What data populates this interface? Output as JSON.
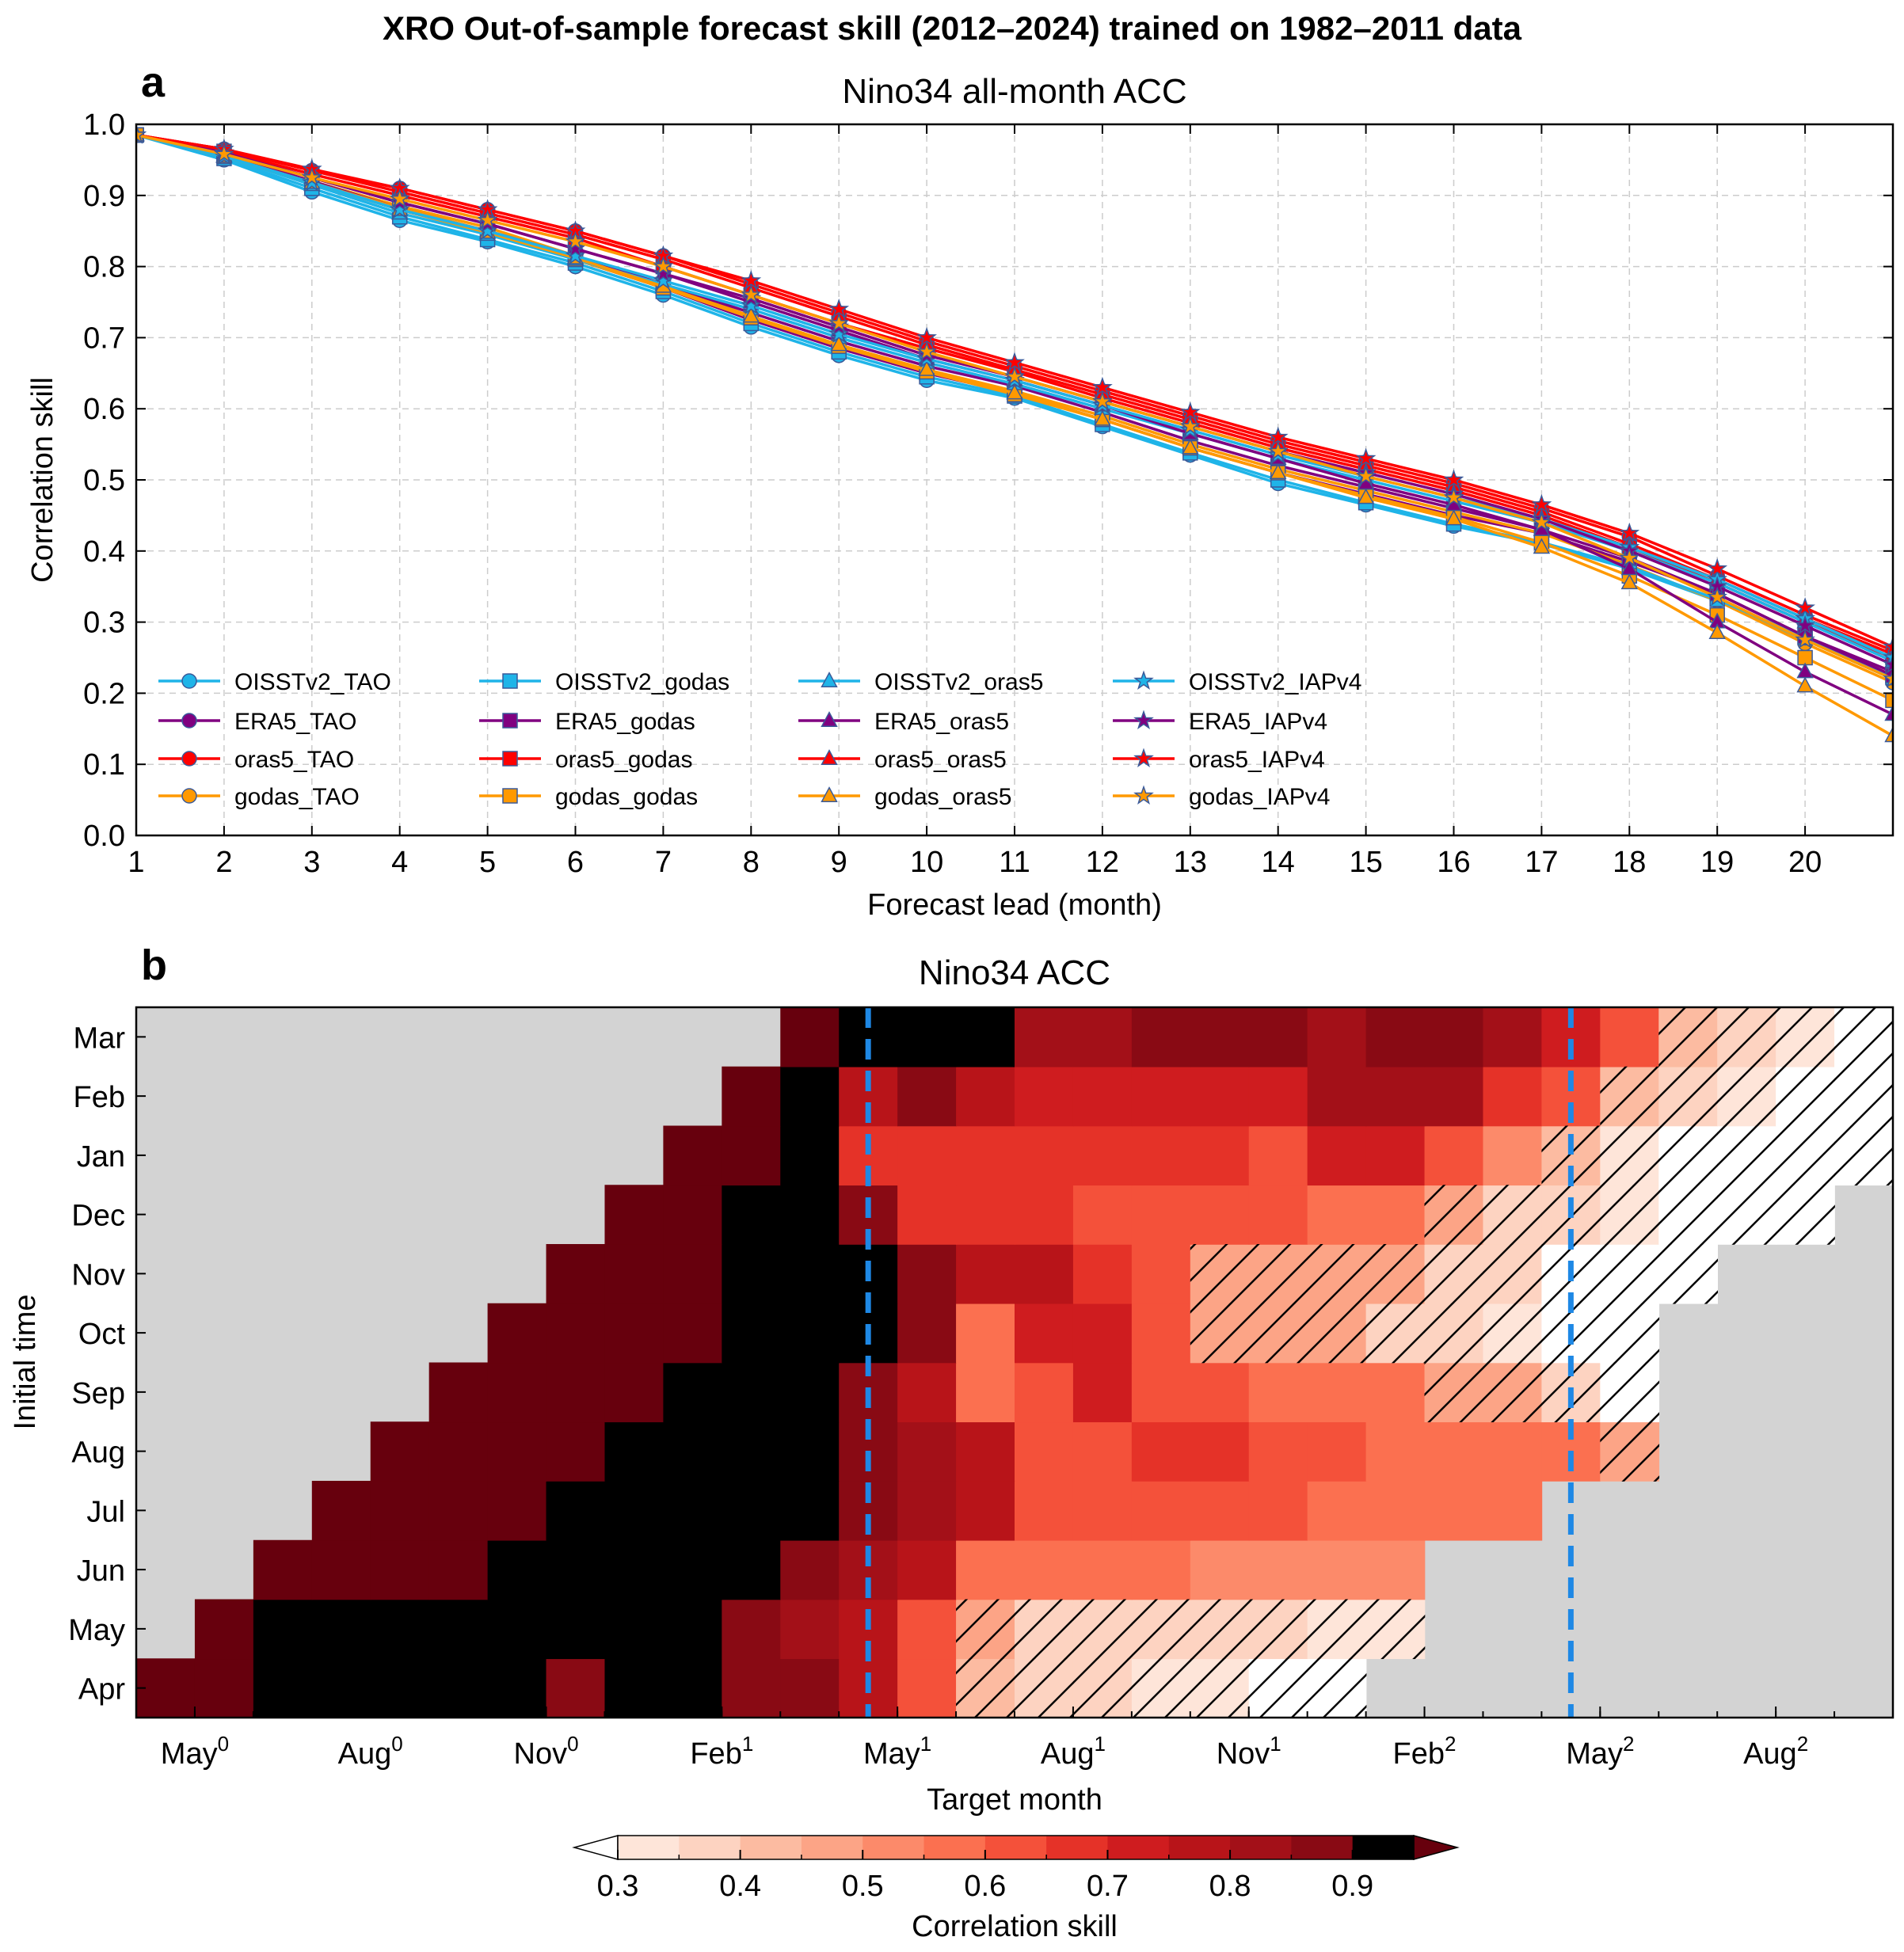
{
  "figure": {
    "suptitle": "XRO Out-of-sample forecast skill (2012–2024) trained on 1982–2011 data"
  },
  "chart_data": [
    {
      "panel": "a",
      "type": "line",
      "title": "Nino34 all-month ACC",
      "xlabel": "Forecast lead (month)",
      "ylabel": "Correlation skill",
      "xlim": [
        1,
        21
      ],
      "ylim": [
        0,
        1
      ],
      "xticks": [
        1,
        2,
        3,
        4,
        5,
        6,
        7,
        8,
        9,
        10,
        11,
        12,
        13,
        14,
        15,
        16,
        17,
        18,
        19,
        20
      ],
      "yticks": [
        "0.0",
        "0.1",
        "0.2",
        "0.3",
        "0.4",
        "0.5",
        "0.6",
        "0.7",
        "0.8",
        "0.9",
        "1.0"
      ],
      "grid": true,
      "legend_loc": "lower-left",
      "x": [
        1,
        2,
        3,
        4,
        5,
        6,
        7,
        8,
        9,
        10,
        11,
        12,
        13,
        14,
        15,
        16,
        17,
        18,
        19,
        20,
        21
      ],
      "series": [
        {
          "name": "OISSTv2_TAO",
          "color": "#1fb4e8",
          "marker": "circle",
          "values": [
            0.985,
            0.95,
            0.905,
            0.865,
            0.835,
            0.8,
            0.76,
            0.715,
            0.675,
            0.64,
            0.615,
            0.575,
            0.535,
            0.495,
            0.465,
            0.435,
            0.41,
            0.375,
            0.33,
            0.275,
            0.22
          ]
        },
        {
          "name": "ERA5_TAO",
          "color": "#800080",
          "marker": "circle",
          "values": [
            0.985,
            0.958,
            0.918,
            0.88,
            0.848,
            0.81,
            0.77,
            0.725,
            0.685,
            0.65,
            0.622,
            0.585,
            0.545,
            0.51,
            0.48,
            0.45,
            0.425,
            0.385,
            0.34,
            0.28,
            0.23
          ]
        },
        {
          "name": "oras5_TAO",
          "color": "#ff0000",
          "marker": "circle",
          "values": [
            0.985,
            0.965,
            0.935,
            0.91,
            0.88,
            0.85,
            0.815,
            0.775,
            0.735,
            0.695,
            0.66,
            0.625,
            0.59,
            0.555,
            0.525,
            0.495,
            0.46,
            0.42,
            0.365,
            0.31,
            0.26
          ]
        },
        {
          "name": "godas_TAO",
          "color": "#ff9900",
          "marker": "circle",
          "values": [
            0.985,
            0.955,
            0.92,
            0.885,
            0.855,
            0.815,
            0.775,
            0.73,
            0.69,
            0.655,
            0.625,
            0.59,
            0.55,
            0.515,
            0.485,
            0.455,
            0.425,
            0.38,
            0.33,
            0.27,
            0.215
          ]
        },
        {
          "name": "OISSTv2_godas",
          "color": "#1fb4e8",
          "marker": "square",
          "values": [
            0.985,
            0.952,
            0.91,
            0.87,
            0.838,
            0.805,
            0.765,
            0.72,
            0.68,
            0.645,
            0.618,
            0.578,
            0.538,
            0.5,
            0.468,
            0.438,
            0.412,
            0.378,
            0.332,
            0.278,
            0.222
          ]
        },
        {
          "name": "ERA5_godas",
          "color": "#800080",
          "marker": "square",
          "values": [
            0.985,
            0.958,
            0.92,
            0.882,
            0.85,
            0.815,
            0.775,
            0.735,
            0.695,
            0.66,
            0.632,
            0.595,
            0.555,
            0.52,
            0.49,
            0.46,
            0.43,
            0.39,
            0.34,
            0.28,
            0.225
          ]
        },
        {
          "name": "oras5_godas",
          "color": "#ff0000",
          "marker": "square",
          "values": [
            0.985,
            0.962,
            0.93,
            0.9,
            0.87,
            0.84,
            0.8,
            0.76,
            0.72,
            0.685,
            0.652,
            0.615,
            0.58,
            0.545,
            0.515,
            0.485,
            0.45,
            0.405,
            0.355,
            0.3,
            0.25
          ]
        },
        {
          "name": "godas_godas",
          "color": "#ff9900",
          "marker": "square",
          "values": [
            0.985,
            0.955,
            0.918,
            0.882,
            0.85,
            0.81,
            0.77,
            0.728,
            0.688,
            0.652,
            0.62,
            0.585,
            0.545,
            0.51,
            0.478,
            0.448,
            0.412,
            0.365,
            0.31,
            0.25,
            0.19
          ]
        },
        {
          "name": "OISSTv2_oras5",
          "color": "#1fb4e8",
          "marker": "triangle",
          "values": [
            0.985,
            0.955,
            0.915,
            0.875,
            0.845,
            0.81,
            0.775,
            0.74,
            0.7,
            0.665,
            0.635,
            0.6,
            0.565,
            0.53,
            0.5,
            0.47,
            0.44,
            0.4,
            0.355,
            0.3,
            0.245
          ]
        },
        {
          "name": "ERA5_oras5",
          "color": "#800080",
          "marker": "triangle",
          "values": [
            0.985,
            0.96,
            0.925,
            0.89,
            0.86,
            0.825,
            0.79,
            0.75,
            0.71,
            0.67,
            0.64,
            0.605,
            0.565,
            0.53,
            0.495,
            0.465,
            0.43,
            0.375,
            0.3,
            0.23,
            0.17
          ]
        },
        {
          "name": "oras5_oras5",
          "color": "#ff0000",
          "marker": "triangle",
          "values": [
            0.985,
            0.965,
            0.935,
            0.905,
            0.875,
            0.845,
            0.81,
            0.77,
            0.73,
            0.69,
            0.655,
            0.62,
            0.585,
            0.55,
            0.52,
            0.49,
            0.455,
            0.41,
            0.36,
            0.305,
            0.255
          ]
        },
        {
          "name": "godas_oras5",
          "color": "#ff9900",
          "marker": "triangle",
          "values": [
            0.985,
            0.955,
            0.918,
            0.88,
            0.848,
            0.812,
            0.772,
            0.73,
            0.69,
            0.655,
            0.622,
            0.585,
            0.545,
            0.51,
            0.475,
            0.445,
            0.405,
            0.355,
            0.285,
            0.21,
            0.14
          ]
        },
        {
          "name": "OISSTv2_IAPv4",
          "color": "#1fb4e8",
          "marker": "star",
          "values": [
            0.985,
            0.955,
            0.918,
            0.88,
            0.85,
            0.815,
            0.78,
            0.745,
            0.705,
            0.67,
            0.64,
            0.605,
            0.57,
            0.535,
            0.505,
            0.475,
            0.445,
            0.405,
            0.36,
            0.305,
            0.25
          ]
        },
        {
          "name": "ERA5_IAPv4",
          "color": "#800080",
          "marker": "star",
          "values": [
            0.985,
            0.96,
            0.925,
            0.89,
            0.86,
            0.825,
            0.79,
            0.755,
            0.715,
            0.675,
            0.645,
            0.61,
            0.575,
            0.54,
            0.51,
            0.48,
            0.445,
            0.4,
            0.35,
            0.295,
            0.24
          ]
        },
        {
          "name": "oras5_IAPv4",
          "color": "#ff0000",
          "marker": "star",
          "values": [
            0.985,
            0.965,
            0.937,
            0.91,
            0.88,
            0.85,
            0.815,
            0.78,
            0.74,
            0.7,
            0.665,
            0.63,
            0.595,
            0.56,
            0.53,
            0.5,
            0.465,
            0.425,
            0.375,
            0.32,
            0.265
          ]
        },
        {
          "name": "godas_IAPv4",
          "color": "#ff9900",
          "marker": "star",
          "values": [
            0.985,
            0.958,
            0.925,
            0.895,
            0.865,
            0.835,
            0.8,
            0.76,
            0.72,
            0.68,
            0.645,
            0.61,
            0.575,
            0.54,
            0.505,
            0.475,
            0.44,
            0.39,
            0.335,
            0.275,
            0.22
          ]
        }
      ]
    },
    {
      "panel": "b",
      "type": "heatmap",
      "title": "Nino34 ACC",
      "xlabel": "Target month",
      "ylabel": "Initial time",
      "x_range_months": [
        0,
        30
      ],
      "note_x": "month offset 0 = Apr year 0; cell column index = init month offset + lead",
      "xticks": [
        {
          "month": 1,
          "label": "May",
          "sup": "0"
        },
        {
          "month": 4,
          "label": "Aug",
          "sup": "0"
        },
        {
          "month": 7,
          "label": "Nov",
          "sup": "0"
        },
        {
          "month": 10,
          "label": "Feb",
          "sup": "1"
        },
        {
          "month": 13,
          "label": "May",
          "sup": "1"
        },
        {
          "month": 16,
          "label": "Aug",
          "sup": "1"
        },
        {
          "month": 19,
          "label": "Nov",
          "sup": "1"
        },
        {
          "month": 22,
          "label": "Feb",
          "sup": "2"
        },
        {
          "month": 25,
          "label": "May",
          "sup": "2"
        },
        {
          "month": 28,
          "label": "Aug",
          "sup": "2"
        }
      ],
      "yticks": [
        "Apr",
        "May",
        "Jun",
        "Jul",
        "Aug",
        "Sep",
        "Oct",
        "Nov",
        "Dec",
        "Jan",
        "Feb",
        "Mar"
      ],
      "dashed_vlines_month": [
        12.5,
        24.5
      ],
      "dashed_color": "#1e88e5",
      "missing_color": "#d3d3d3",
      "hatch_threshold": 0.5,
      "rows": [
        {
          "init": "Apr",
          "start_month": 0,
          "values": [
            0.97,
            0.97,
            0.93,
            0.93,
            0.93,
            0.93,
            0.93,
            0.87,
            0.92,
            0.92,
            0.87,
            0.87,
            0.78,
            0.62,
            0.42,
            0.37,
            0.37,
            0.3,
            0.3,
            0.22,
            0.15
          ]
        },
        {
          "init": "May",
          "start_month": 1,
          "values": [
            0.97,
            0.93,
            0.93,
            0.93,
            0.93,
            0.93,
            0.93,
            0.9,
            0.9,
            0.87,
            0.82,
            0.78,
            0.62,
            0.47,
            0.37,
            0.37,
            0.37,
            0.35,
            0.35,
            0.32,
            0.3
          ]
        },
        {
          "init": "Jun",
          "start_month": 2,
          "values": [
            0.97,
            0.97,
            0.97,
            0.97,
            0.93,
            0.93,
            0.93,
            0.9,
            0.9,
            0.87,
            0.82,
            0.78,
            0.55,
            0.55,
            0.55,
            0.55,
            0.52,
            0.52,
            0.52,
            0.52
          ]
        },
        {
          "init": "Jul",
          "start_month": 3,
          "values": [
            0.97,
            0.97,
            0.97,
            0.97,
            0.93,
            0.93,
            0.93,
            0.93,
            0.9,
            0.87,
            0.82,
            0.78,
            0.62,
            0.62,
            0.62,
            0.62,
            0.62,
            0.55,
            0.55,
            0.55,
            0.55
          ]
        },
        {
          "init": "Aug",
          "start_month": 4,
          "values": [
            0.97,
            0.97,
            0.97,
            0.97,
            0.93,
            0.93,
            0.93,
            0.9,
            0.87,
            0.82,
            0.78,
            0.62,
            0.62,
            0.65,
            0.65,
            0.62,
            0.62,
            0.58,
            0.55,
            0.55,
            0.55,
            0.48
          ]
        },
        {
          "init": "Sep",
          "start_month": 5,
          "values": [
            0.97,
            0.97,
            0.97,
            0.97,
            0.93,
            0.93,
            0.9,
            0.87,
            0.78,
            0.55,
            0.62,
            0.72,
            0.62,
            0.62,
            0.55,
            0.55,
            0.55,
            0.48,
            0.48,
            0.35,
            0.28
          ]
        },
        {
          "init": "Oct",
          "start_month": 6,
          "values": [
            0.97,
            0.97,
            0.97,
            0.97,
            0.93,
            0.93,
            0.9,
            0.87,
            0.55,
            0.72,
            0.72,
            0.62,
            0.48,
            0.45,
            0.45,
            0.35,
            0.35,
            0.3,
            0.25,
            0.22
          ]
        },
        {
          "init": "Nov",
          "start_month": 7,
          "values": [
            0.97,
            0.97,
            0.97,
            0.93,
            0.93,
            0.9,
            0.87,
            0.75,
            0.75,
            0.65,
            0.6,
            0.48,
            0.48,
            0.45,
            0.45,
            0.35,
            0.35,
            0.28,
            0.25,
            0.22
          ]
        },
        {
          "init": "Dec",
          "start_month": 8,
          "values": [
            0.97,
            0.97,
            0.93,
            0.93,
            0.87,
            0.68,
            0.68,
            0.68,
            0.62,
            0.62,
            0.62,
            0.62,
            0.55,
            0.55,
            0.48,
            0.38,
            0.38,
            0.32,
            0.28,
            0.25,
            0.22
          ]
        },
        {
          "init": "Jan",
          "start_month": 9,
          "values": [
            0.97,
            0.97,
            0.9,
            0.68,
            0.68,
            0.68,
            0.68,
            0.68,
            0.68,
            0.68,
            0.62,
            0.72,
            0.72,
            0.62,
            0.5,
            0.4,
            0.3,
            0.28,
            0.25,
            0.22,
            0.2
          ]
        },
        {
          "init": "Feb",
          "start_month": 10,
          "values": [
            0.97,
            0.93,
            0.78,
            0.87,
            0.78,
            0.72,
            0.72,
            0.72,
            0.72,
            0.72,
            0.8,
            0.8,
            0.8,
            0.68,
            0.62,
            0.42,
            0.37,
            0.3,
            0.28,
            0.25,
            0.22
          ]
        },
        {
          "init": "Mar",
          "start_month": 11,
          "values": [
            0.99,
            0.93,
            0.93,
            0.9,
            0.8,
            0.8,
            0.85,
            0.85,
            0.85,
            0.8,
            0.85,
            0.85,
            0.8,
            0.72,
            0.62,
            0.42,
            0.38,
            0.32,
            0.28,
            0.25,
            0.22
          ]
        }
      ]
    },
    {
      "panel": "colorbar",
      "type": "colorbar",
      "label": "Correlation skill",
      "levels": [
        0.3,
        0.35,
        0.4,
        0.45,
        0.5,
        0.55,
        0.6,
        0.65,
        0.7,
        0.75,
        0.8,
        0.85,
        0.9,
        0.95
      ],
      "ticks": [
        "0.3",
        "0.4",
        "0.5",
        "0.6",
        "0.7",
        "0.8",
        "0.9"
      ],
      "colors": [
        "#fee5d9",
        "#fdd3c1",
        "#fcbba1",
        "#fca486",
        "#fc8a6a",
        "#fb7050",
        "#f4513a",
        "#e53228",
        "#cf1c1f",
        "#b81419",
        "#a31018",
        "#890a14"
      ],
      "under_color": "#ffffff",
      "over_color": "#67000d"
    }
  ],
  "labels": {
    "panel_a": "a",
    "panel_b": "b"
  }
}
